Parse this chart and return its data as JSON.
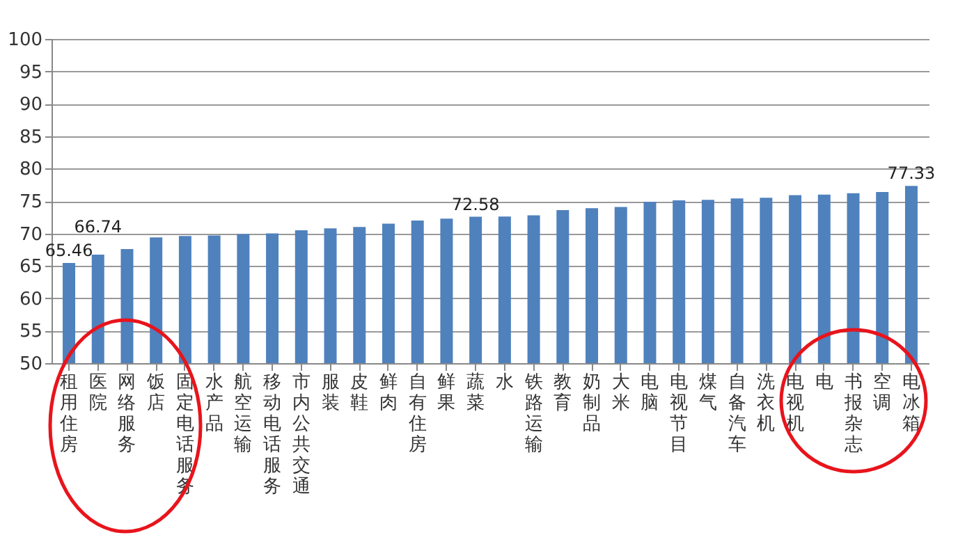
{
  "chart_data": {
    "type": "bar",
    "categories": [
      "租用住房",
      "医院",
      "网络服务",
      "饭店",
      "固定电话服务",
      "水产品",
      "航空运输",
      "移动电话服务",
      "市内公共交通",
      "服装",
      "皮鞋",
      "鲜肉",
      "自有住房",
      "鲜果",
      "蔬菜",
      "水",
      "铁路运输",
      "教育",
      "奶制品",
      "大米",
      "电脑",
      "电视节目",
      "煤气",
      "自备汽车",
      "洗衣机",
      "电视机",
      "电",
      "书报杂志",
      "空调",
      "电冰箱"
    ],
    "values": [
      65.46,
      66.74,
      67.6,
      69.4,
      69.6,
      69.7,
      69.9,
      70.0,
      70.5,
      70.8,
      71.0,
      71.5,
      72.0,
      72.3,
      72.58,
      72.6,
      72.8,
      73.6,
      73.9,
      74.1,
      74.9,
      75.1,
      75.2,
      75.4,
      75.5,
      75.9,
      76.0,
      76.2,
      76.4,
      77.33
    ],
    "value_labels": [
      "65.46",
      "66.74",
      null,
      null,
      null,
      null,
      null,
      null,
      null,
      null,
      null,
      null,
      null,
      null,
      "72.58",
      null,
      null,
      null,
      null,
      null,
      null,
      null,
      null,
      null,
      null,
      null,
      null,
      null,
      null,
      "77.33"
    ],
    "color": "#4f81bd",
    "ylim": [
      50,
      100
    ],
    "yticks": [
      50,
      55,
      60,
      65,
      70,
      75,
      80,
      85,
      90,
      95,
      100
    ],
    "grid": "y"
  }
}
